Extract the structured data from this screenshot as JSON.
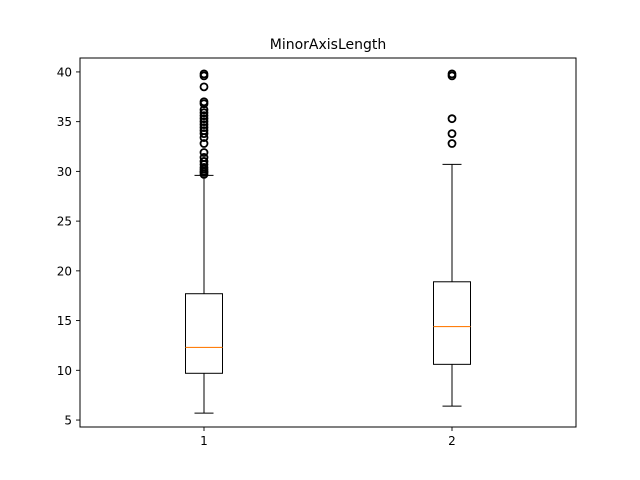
{
  "chart_data": {
    "type": "boxplot",
    "title": "MinorAxisLength",
    "xlabel": "",
    "ylabel": "",
    "categories": [
      "1",
      "2"
    ],
    "ylim": [
      4.3,
      41.4
    ],
    "yticks": [
      5,
      10,
      15,
      20,
      25,
      30,
      35,
      40
    ],
    "grid": false,
    "boxes": [
      {
        "name": "1",
        "whisker_low": 5.7,
        "q1": 9.7,
        "median": 12.3,
        "q3": 17.7,
        "whisker_high": 29.6,
        "outliers": [
          29.7,
          29.9,
          30.0,
          30.2,
          30.4,
          30.7,
          31.0,
          31.4,
          31.9,
          32.8,
          33.4,
          33.8,
          34.1,
          34.4,
          34.7,
          35.0,
          35.3,
          35.6,
          35.9,
          36.2,
          36.8,
          37.0,
          38.5,
          39.6,
          39.8
        ]
      },
      {
        "name": "2",
        "whisker_low": 6.4,
        "q1": 10.6,
        "median": 14.4,
        "q3": 18.9,
        "whisker_high": 30.7,
        "outliers": [
          32.8,
          33.8,
          35.3,
          39.6,
          39.8
        ]
      }
    ],
    "colors": {
      "box": "#000000",
      "median": "#ff7f0e",
      "outlier": "#000000"
    }
  }
}
